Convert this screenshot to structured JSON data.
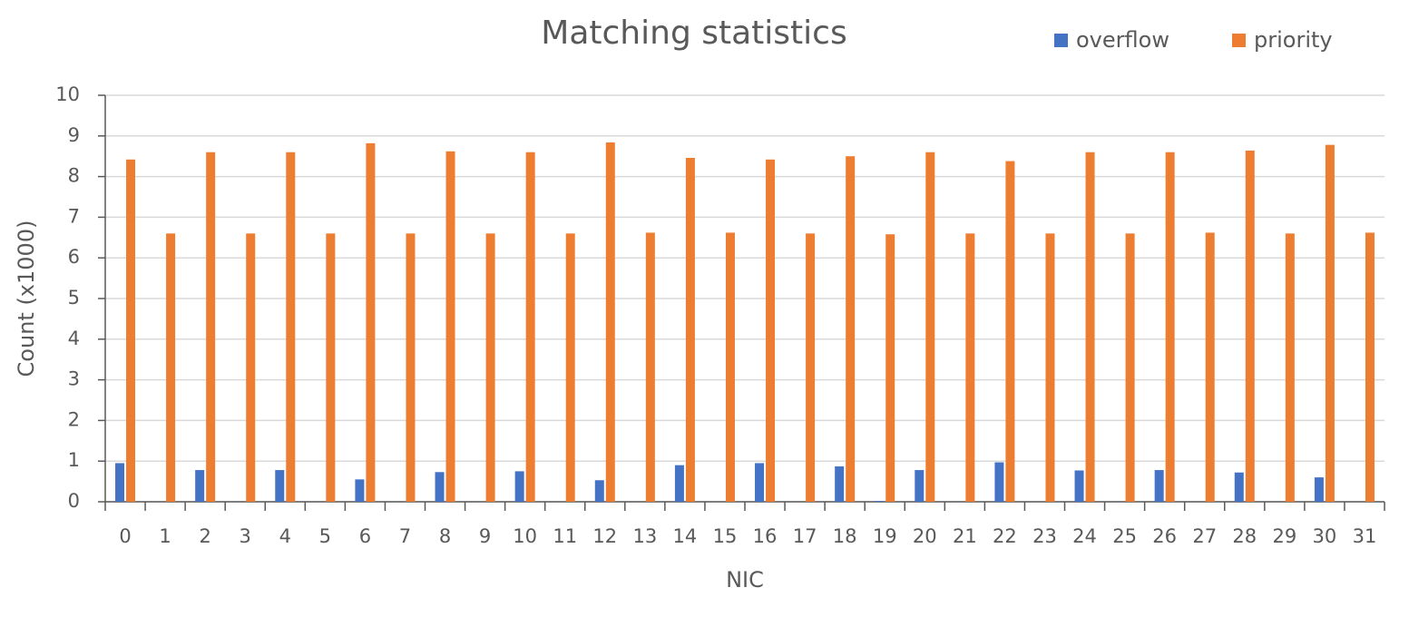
{
  "chart_data": {
    "type": "bar",
    "title": "Matching statistics",
    "x_label": "NIC",
    "y_label": "Count (x1000)",
    "categories": [
      "0",
      "1",
      "2",
      "3",
      "4",
      "5",
      "6",
      "7",
      "8",
      "9",
      "10",
      "11",
      "12",
      "13",
      "14",
      "15",
      "16",
      "17",
      "18",
      "19",
      "20",
      "21",
      "22",
      "23",
      "24",
      "25",
      "26",
      "27",
      "28",
      "29",
      "30",
      "31"
    ],
    "series": [
      {
        "name": "overflow",
        "color": "#4472c4",
        "values": [
          0.95,
          0,
          0.78,
          0,
          0.78,
          0,
          0.55,
          0,
          0.73,
          0,
          0.75,
          0,
          0.53,
          0,
          0.9,
          0,
          0.95,
          0,
          0.87,
          0.02,
          0.78,
          0,
          0.97,
          0,
          0.77,
          0,
          0.78,
          0,
          0.72,
          0,
          0.6,
          0
        ]
      },
      {
        "name": "priority",
        "color": "#ed7d31",
        "values": [
          8.42,
          6.6,
          8.6,
          6.6,
          8.6,
          6.6,
          8.82,
          6.6,
          8.62,
          6.6,
          8.6,
          6.6,
          8.84,
          6.62,
          8.46,
          6.62,
          8.42,
          6.6,
          8.5,
          6.58,
          8.6,
          6.6,
          8.38,
          6.6,
          8.6,
          6.6,
          8.6,
          6.62,
          8.64,
          6.6,
          8.78,
          6.62
        ]
      }
    ],
    "ylim": [
      0,
      10
    ],
    "yticks": [
      0,
      1,
      2,
      3,
      4,
      5,
      6,
      7,
      8,
      9,
      10
    ],
    "grid": true,
    "legend": "top-right"
  }
}
